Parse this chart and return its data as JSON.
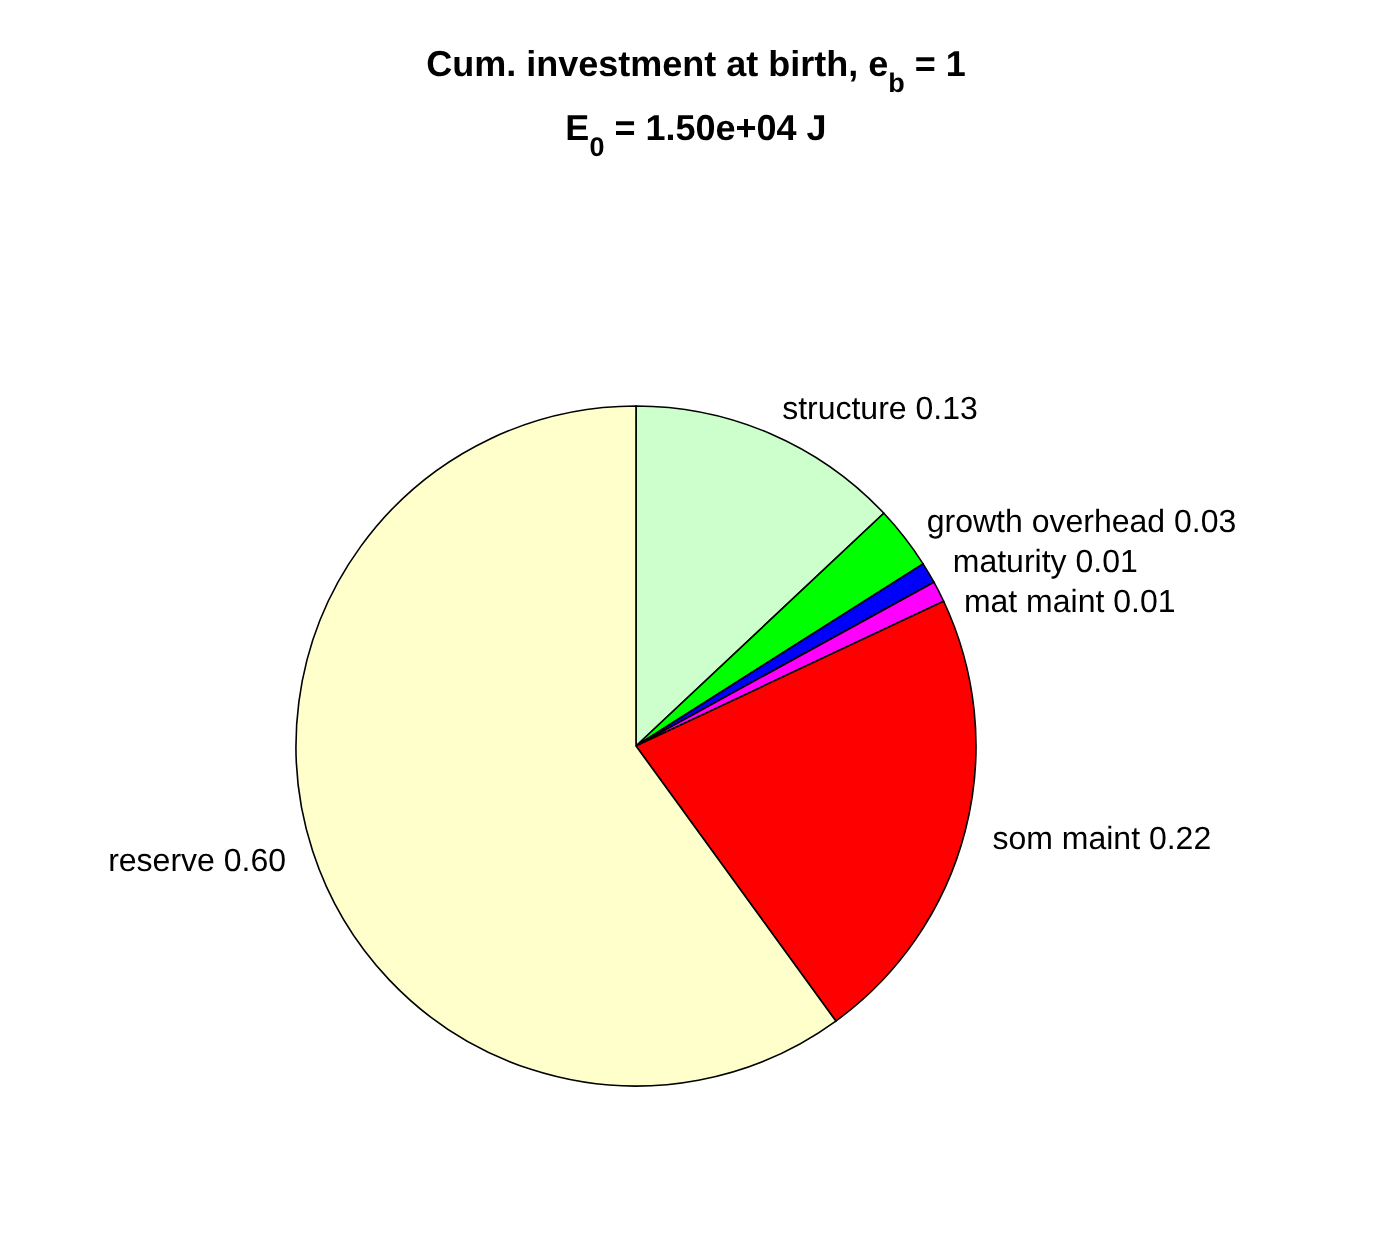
{
  "chart_data": {
    "type": "pie",
    "title": "Cum. investment at birth, e$_{b}$ = 1",
    "subtitle": "E$_{0}$ = 1.50e+04 J",
    "categories": [
      "structure",
      "growth overhead",
      "maturity",
      "mat maint",
      "som maint",
      "reserve"
    ],
    "values": [
      0.13,
      0.03,
      0.01,
      0.01,
      0.22,
      0.6
    ],
    "value_labels": [
      "0.13",
      "0.03",
      "0.01",
      "0.01",
      "0.22",
      "0.60"
    ],
    "colors": [
      "#ccffcc",
      "#00ff00",
      "#0000ff",
      "#ff00ff",
      "#ff0000",
      "#ffffcc"
    ]
  }
}
